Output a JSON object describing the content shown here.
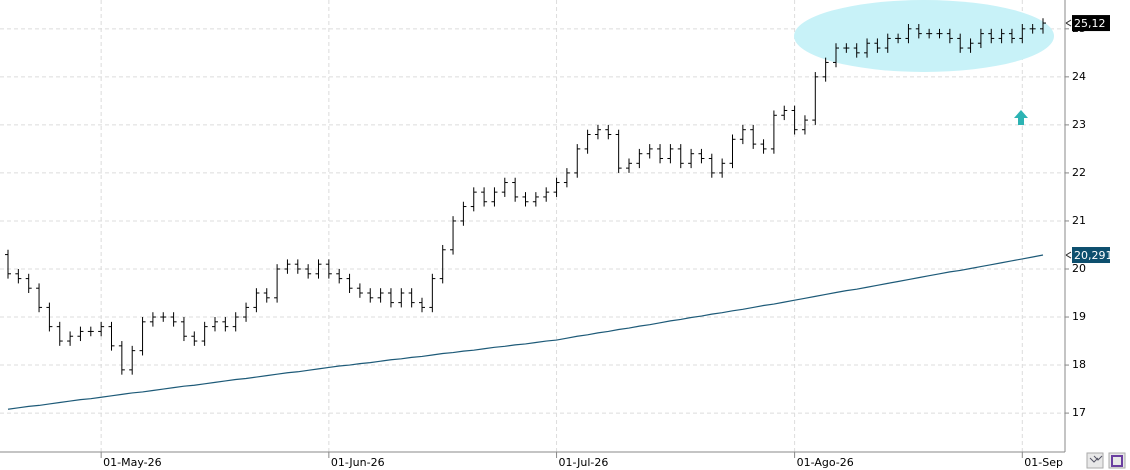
{
  "chart_data": {
    "type": "ohlc",
    "categories": [
      null,
      null,
      null,
      null,
      null,
      null,
      null,
      null,
      null,
      "01-May-26",
      null,
      null,
      null,
      null,
      null,
      null,
      null,
      null,
      null,
      null,
      null,
      null,
      null,
      null,
      null,
      null,
      null,
      null,
      null,
      null,
      null,
      "01-Jun-26",
      null,
      null,
      null,
      null,
      null,
      null,
      null,
      null,
      null,
      null,
      null,
      null,
      null,
      null,
      null,
      null,
      null,
      null,
      null,
      null,
      null,
      "01-Jul-26",
      null,
      null,
      null,
      null,
      null,
      null,
      null,
      null,
      null,
      null,
      null,
      null,
      null,
      null,
      null,
      null,
      null,
      null,
      null,
      null,
      null,
      null,
      "01-Ago-26",
      null,
      null,
      null,
      null,
      null,
      null,
      null,
      null,
      null,
      null,
      null,
      null,
      null,
      null,
      null,
      null,
      null,
      null,
      null,
      null,
      null,
      "01-Sep",
      null,
      null
    ],
    "ylim": [
      16.19,
      25.6
    ],
    "yticks": [
      17,
      18,
      19,
      20,
      21,
      22,
      23,
      24,
      25
    ],
    "grid": true,
    "series": [
      {
        "type": "ohlc",
        "color": "#000000",
        "last_value_label": "25,12",
        "open": [
          20.3,
          19.9,
          19.8,
          19.6,
          19.2,
          18.8,
          18.5,
          18.6,
          18.7,
          18.7,
          18.8,
          18.4,
          17.9,
          18.3,
          18.9,
          19.0,
          19.0,
          18.9,
          18.6,
          18.5,
          18.8,
          18.9,
          18.8,
          19.0,
          19.2,
          19.5,
          19.4,
          20.0,
          20.1,
          20.0,
          19.9,
          20.1,
          19.9,
          19.8,
          19.6,
          19.5,
          19.4,
          19.5,
          19.3,
          19.5,
          19.3,
          19.2,
          19.8,
          20.4,
          21.0,
          21.3,
          21.6,
          21.4,
          21.6,
          21.8,
          21.5,
          21.4,
          21.5,
          21.6,
          21.8,
          22.0,
          22.5,
          22.8,
          22.9,
          22.8,
          22.1,
          22.2,
          22.4,
          22.5,
          22.3,
          22.5,
          22.2,
          22.4,
          22.3,
          22.0,
          22.2,
          22.7,
          22.9,
          22.6,
          22.5,
          23.2,
          23.3,
          22.9,
          23.1,
          24.0,
          24.3,
          24.6,
          24.6,
          24.5,
          24.7,
          24.6,
          24.8,
          24.8,
          25.0,
          24.9,
          24.9,
          24.9,
          24.8,
          24.6,
          24.7,
          24.9,
          24.8,
          24.9,
          24.8,
          25.0,
          25.0
        ],
        "high": [
          20.4,
          20.0,
          19.9,
          19.7,
          19.3,
          18.9,
          18.7,
          18.8,
          18.8,
          18.9,
          18.9,
          18.5,
          18.4,
          19.0,
          19.1,
          19.1,
          19.1,
          19.0,
          18.7,
          18.9,
          19.0,
          19.0,
          19.1,
          19.3,
          19.6,
          19.6,
          20.1,
          20.2,
          20.2,
          20.1,
          20.2,
          20.2,
          20.0,
          19.9,
          19.7,
          19.6,
          19.6,
          19.6,
          19.6,
          19.6,
          19.4,
          19.9,
          20.5,
          21.1,
          21.4,
          21.7,
          21.7,
          21.7,
          21.9,
          21.9,
          21.6,
          21.6,
          21.7,
          21.9,
          22.1,
          22.6,
          22.9,
          23.0,
          23.0,
          22.9,
          22.3,
          22.5,
          22.6,
          22.6,
          22.6,
          22.6,
          22.5,
          22.5,
          22.4,
          22.3,
          22.8,
          23.0,
          23.0,
          22.7,
          23.3,
          23.4,
          23.4,
          23.2,
          24.1,
          24.4,
          24.7,
          24.7,
          24.7,
          24.8,
          24.8,
          24.9,
          24.9,
          25.1,
          25.1,
          25.0,
          25.0,
          25.0,
          24.9,
          24.8,
          25.0,
          25.0,
          25.0,
          25.0,
          25.1,
          25.1,
          25.22
        ],
        "low": [
          19.8,
          19.7,
          19.5,
          19.1,
          18.7,
          18.4,
          18.4,
          18.5,
          18.6,
          18.6,
          18.3,
          17.8,
          17.8,
          18.2,
          18.8,
          18.9,
          18.8,
          18.5,
          18.4,
          18.4,
          18.7,
          18.7,
          18.7,
          18.9,
          19.1,
          19.3,
          19.3,
          19.9,
          19.9,
          19.8,
          19.8,
          19.8,
          19.7,
          19.5,
          19.4,
          19.3,
          19.3,
          19.2,
          19.2,
          19.2,
          19.1,
          19.1,
          19.7,
          20.3,
          20.9,
          21.2,
          21.3,
          21.3,
          21.5,
          21.4,
          21.3,
          21.3,
          21.4,
          21.5,
          21.7,
          21.9,
          22.4,
          22.7,
          22.7,
          22.0,
          22.0,
          22.1,
          22.3,
          22.2,
          22.2,
          22.1,
          22.1,
          22.2,
          21.9,
          21.9,
          22.1,
          22.6,
          22.5,
          22.4,
          22.4,
          23.1,
          22.8,
          22.8,
          23.0,
          23.9,
          24.2,
          24.5,
          24.4,
          24.4,
          24.5,
          24.5,
          24.7,
          24.7,
          24.8,
          24.8,
          24.8,
          24.7,
          24.5,
          24.5,
          24.6,
          24.7,
          24.7,
          24.7,
          24.7,
          24.9,
          24.9
        ],
        "close": [
          19.9,
          19.8,
          19.6,
          19.2,
          18.8,
          18.5,
          18.6,
          18.7,
          18.7,
          18.8,
          18.4,
          17.9,
          18.3,
          18.9,
          19.0,
          19.0,
          18.9,
          18.6,
          18.5,
          18.8,
          18.9,
          18.8,
          19.0,
          19.2,
          19.5,
          19.4,
          20.0,
          20.1,
          20.0,
          19.9,
          20.1,
          19.9,
          19.8,
          19.6,
          19.5,
          19.4,
          19.5,
          19.3,
          19.5,
          19.3,
          19.2,
          19.8,
          20.4,
          21.0,
          21.3,
          21.6,
          21.4,
          21.6,
          21.8,
          21.5,
          21.4,
          21.5,
          21.6,
          21.8,
          22.0,
          22.5,
          22.8,
          22.9,
          22.8,
          22.1,
          22.2,
          22.4,
          22.5,
          22.3,
          22.5,
          22.2,
          22.4,
          22.3,
          22.0,
          22.2,
          22.7,
          22.9,
          22.6,
          22.5,
          23.2,
          23.3,
          22.9,
          23.1,
          24.0,
          24.3,
          24.6,
          24.6,
          24.5,
          24.7,
          24.6,
          24.8,
          24.8,
          25.0,
          24.9,
          24.9,
          24.9,
          24.8,
          24.6,
          24.7,
          24.9,
          24.8,
          24.9,
          24.8,
          25.0,
          25.0,
          25.12
        ]
      },
      {
        "type": "line",
        "color": "#1d5a78",
        "last_value_label": "20,291",
        "values": [
          17.08,
          17.11,
          17.14,
          17.16,
          17.19,
          17.22,
          17.25,
          17.28,
          17.3,
          17.33,
          17.36,
          17.39,
          17.42,
          17.44,
          17.47,
          17.5,
          17.53,
          17.56,
          17.58,
          17.61,
          17.64,
          17.67,
          17.7,
          17.72,
          17.75,
          17.78,
          17.81,
          17.84,
          17.86,
          17.89,
          17.92,
          17.95,
          17.98,
          18.0,
          18.03,
          18.05,
          18.08,
          18.11,
          18.13,
          18.16,
          18.18,
          18.21,
          18.24,
          18.26,
          18.29,
          18.31,
          18.34,
          18.37,
          18.39,
          18.42,
          18.44,
          18.47,
          18.5,
          18.52,
          18.56,
          18.6,
          18.63,
          18.67,
          18.7,
          18.74,
          18.77,
          18.81,
          18.84,
          18.88,
          18.92,
          18.95,
          18.99,
          19.02,
          19.06,
          19.09,
          19.13,
          19.16,
          19.2,
          19.24,
          19.27,
          19.31,
          19.35,
          19.39,
          19.43,
          19.47,
          19.51,
          19.55,
          19.58,
          19.62,
          19.66,
          19.7,
          19.74,
          19.78,
          19.82,
          19.86,
          19.9,
          19.94,
          19.97,
          20.01,
          20.05,
          20.09,
          20.13,
          20.17,
          20.21,
          20.25,
          20.291
        ]
      }
    ]
  }
}
